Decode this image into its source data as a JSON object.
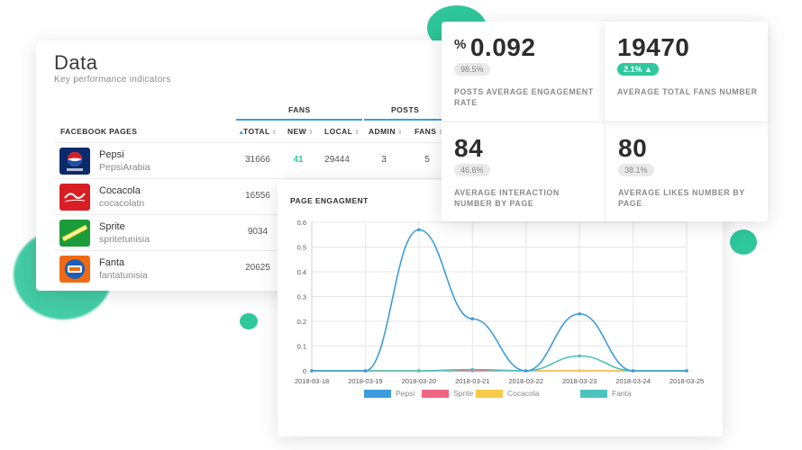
{
  "data_card": {
    "title": "Data",
    "subtitle": "Key performance indicators",
    "groups": {
      "fans": "FANS",
      "posts": "POSTS"
    },
    "columns": {
      "pages": "FACEBOOK PAGES",
      "total": "TOTAL",
      "new": "NEW",
      "local": "LOCAL",
      "admin": "ADMIN",
      "fans": "FANS"
    },
    "rows": [
      {
        "name": "Pepsi",
        "handle": "PepsiArabia",
        "total": "31666",
        "new": "41",
        "local": "29444",
        "admin": "3",
        "fans": "5",
        "logo": "pepsi-logo",
        "color": "#0b2a6b"
      },
      {
        "name": "Cocacola",
        "handle": "cocacolatn",
        "total": "16556",
        "new": "",
        "local": "",
        "admin": "",
        "fans": "",
        "logo": "cocacola-logo",
        "color": "#d81e25"
      },
      {
        "name": "Sprite",
        "handle": "spritetunisia",
        "total": "9034",
        "new": "",
        "local": "",
        "admin": "",
        "fans": "",
        "logo": "sprite-logo",
        "color": "#1c9b3a"
      },
      {
        "name": "Fanta",
        "handle": "fantatunisia",
        "total": "20625",
        "new": "",
        "local": "",
        "admin": "",
        "fans": "",
        "logo": "fanta-logo",
        "color": "#f06a13"
      }
    ]
  },
  "kpis": {
    "engagement": {
      "prefix": "%",
      "value": "0.092",
      "badge": "98.5%",
      "label": "POSTS AVERAGE ENGAGEMENT RATE"
    },
    "fans": {
      "value": "19470",
      "badge": "2.1% ▲",
      "label": "AVERAGE TOTAL FANS NUMBER"
    },
    "interaction": {
      "value": "84",
      "badge": "46.6%",
      "label": "AVERAGE INTERACTION NUMBER BY PAGE"
    },
    "likes": {
      "value": "80",
      "badge": "38.1%",
      "label": "AVERAGE LIKES NUMBER BY PAGE"
    }
  },
  "colors": {
    "accent": "#3d9cdb",
    "green": "#2fc79c"
  },
  "chart_data": {
    "type": "line",
    "title": "PAGE ENGAGMENT",
    "x": [
      "2018-03-18",
      "2018-03-19",
      "2018-03-20",
      "2018-03-21",
      "2018-03-22",
      "2018-03-23",
      "2018-03-24",
      "2018-03-25"
    ],
    "ylim": [
      0,
      0.6
    ],
    "yticks": [
      "0",
      "0.1",
      "0.2",
      "0.3",
      "0.4",
      "0.5",
      "0.6"
    ],
    "grid": true,
    "legend_position": "bottom",
    "series": [
      {
        "name": "Pepsi",
        "color": "#3d9cdb",
        "values": [
          0,
          0,
          0.57,
          0.21,
          0,
          0.23,
          0,
          0
        ]
      },
      {
        "name": "Sprite",
        "color": "#f06584",
        "values": [
          0,
          0,
          0,
          0,
          0,
          0,
          0,
          0
        ]
      },
      {
        "name": "Cocacola",
        "color": "#f8c94a",
        "values": [
          0,
          0,
          0,
          0.005,
          0,
          0,
          0,
          0
        ]
      },
      {
        "name": "Fanta",
        "color": "#4cc3bd",
        "values": [
          0,
          0,
          0,
          0.005,
          0,
          0.06,
          0,
          0
        ]
      }
    ]
  }
}
